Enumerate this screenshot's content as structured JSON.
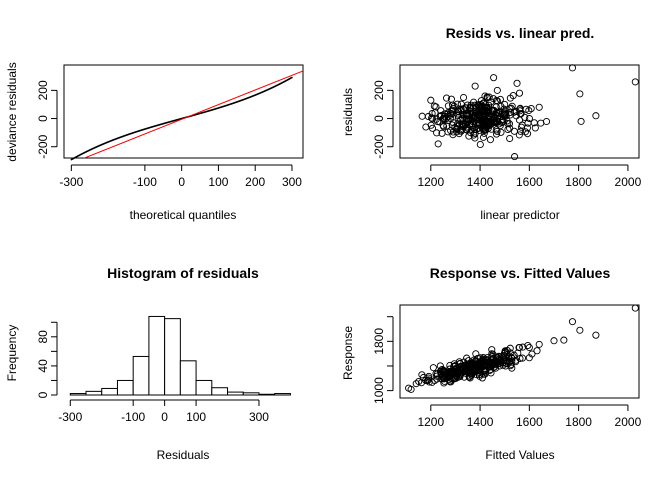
{
  "chart_data": [
    {
      "id": "qq",
      "type": "scatter",
      "title": "",
      "xlabel": "theoretical quantiles",
      "ylabel": "deviance residuals",
      "xlim": [
        -320,
        330
      ],
      "ylim": [
        -280,
        380
      ],
      "xticks": [
        -300,
        -100,
        0,
        100,
        200,
        300
      ],
      "yticks": [
        -200,
        0,
        200
      ],
      "grid": false,
      "reference_line": {
        "color": "#ff0000",
        "x": [
          -320,
          330
        ],
        "y": [
          -338,
          338
        ]
      },
      "point_style": "dot"
    },
    {
      "id": "resid_vs_lp",
      "type": "scatter",
      "title": "Resids vs. linear pred.",
      "xlabel": "linear predictor",
      "ylabel": "residuals",
      "xlim": [
        1075,
        2045
      ],
      "ylim": [
        -280,
        380
      ],
      "xticks": [
        1200,
        1400,
        1600,
        1800,
        2000
      ],
      "yticks": [
        -200,
        0,
        200
      ],
      "grid": false,
      "point_style": "circle",
      "x": [
        1775,
        2030,
        1805,
        1455,
        1870,
        1810,
        1550,
        1560,
        1540,
        1500,
        1620,
        1640,
        1380,
        1180,
        1200,
        1560,
        1470,
        1420,
        1230
      ],
      "y": [
        360,
        260,
        175,
        290,
        20,
        -20,
        250,
        180,
        -270,
        100,
        -30,
        80,
        230,
        -60,
        130,
        -10,
        200,
        160,
        -180
      ]
    },
    {
      "id": "hist",
      "type": "bar",
      "title": "Histogram of residuals",
      "xlabel": "Residuals",
      "ylabel": "Frequency",
      "xlim": [
        -320,
        440
      ],
      "ylim": [
        0,
        110
      ],
      "xticks": [
        -300,
        -100,
        0,
        100,
        300
      ],
      "yticks": [
        0,
        40,
        80
      ],
      "grid": false,
      "bin_edges": [
        -300,
        -250,
        -200,
        -150,
        -100,
        -50,
        0,
        50,
        100,
        150,
        200,
        250,
        300,
        350,
        400
      ],
      "values": [
        2,
        5,
        9,
        20,
        53,
        108,
        105,
        47,
        20,
        10,
        4,
        3,
        1,
        2
      ]
    },
    {
      "id": "resp_vs_fit",
      "type": "scatter",
      "title": "Response vs. Fitted Values",
      "xlabel": "Fitted Values",
      "ylabel": "Response",
      "xlim": [
        1075,
        2045
      ],
      "ylim": [
        880,
        2390
      ],
      "xticks": [
        1200,
        1400,
        1600,
        1800,
        2000
      ],
      "yticks": [
        1000,
        1800
      ],
      "grid": false,
      "point_style": "circle",
      "x": [
        2030,
        1775,
        1805,
        1870,
        1740,
        1700,
        1640,
        1600,
        1120,
        1110,
        1560,
        1520
      ],
      "y": [
        2340,
        2120,
        1980,
        1900,
        1820,
        1810,
        1750,
        1700,
        1020,
        1040,
        1700,
        1480
      ]
    }
  ]
}
